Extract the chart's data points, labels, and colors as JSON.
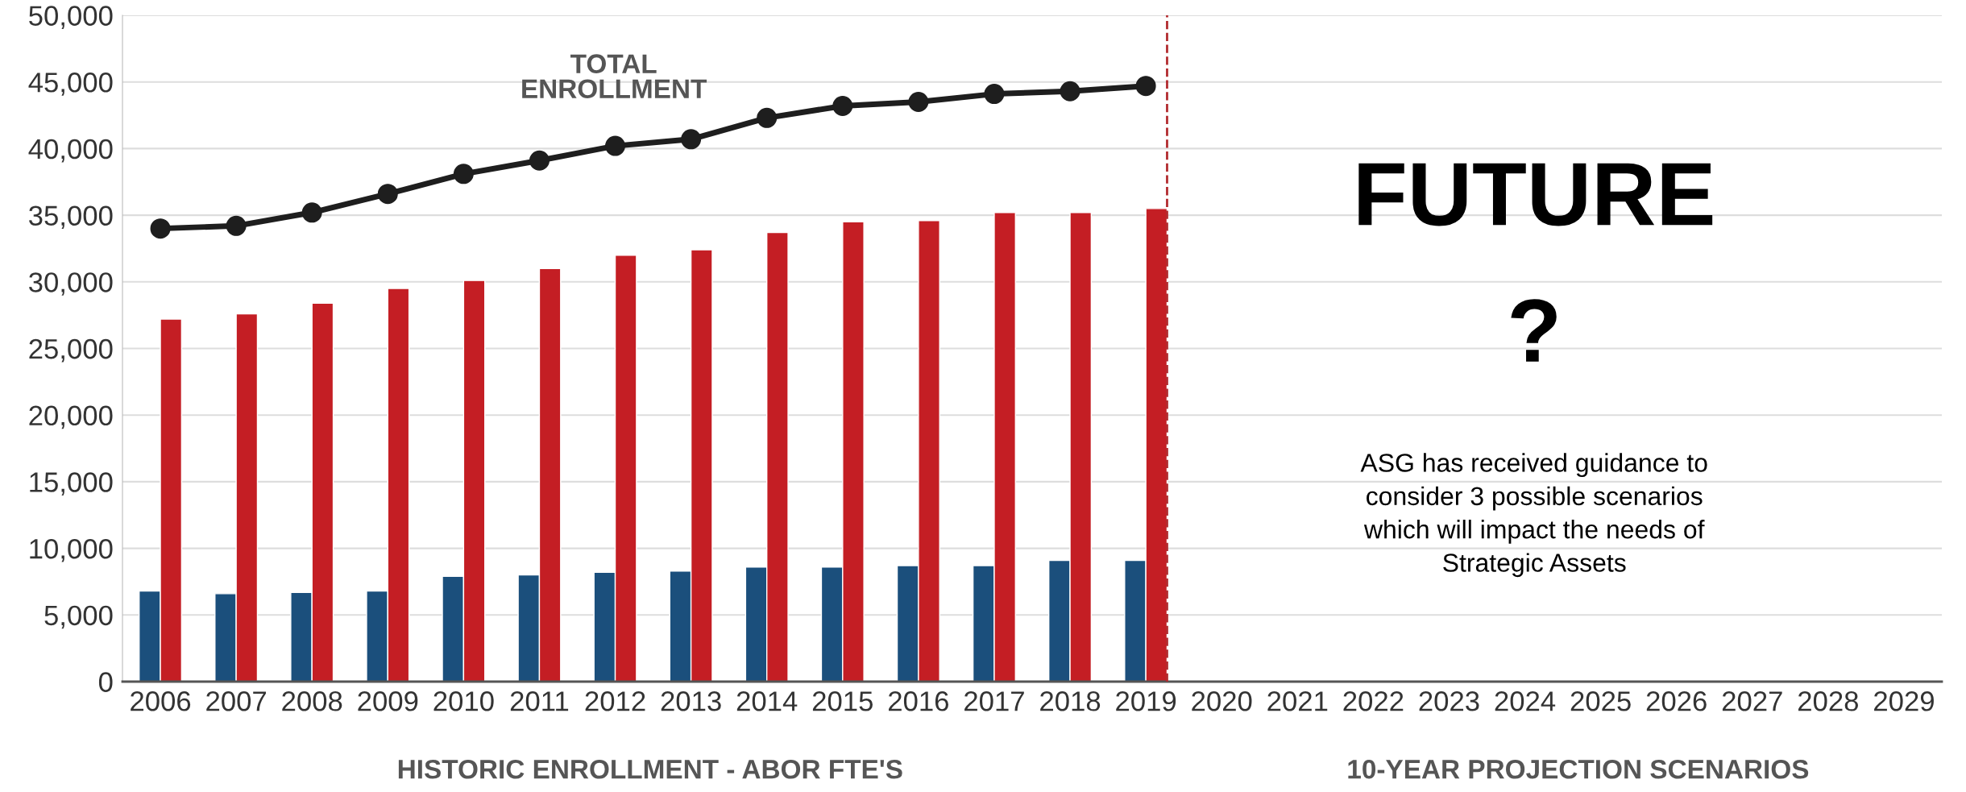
{
  "chart_data": {
    "type": "bar",
    "categories": [
      "2006",
      "2007",
      "2008",
      "2009",
      "2010",
      "2011",
      "2012",
      "2013",
      "2014",
      "2015",
      "2016",
      "2017",
      "2018",
      "2019",
      "2020",
      "2021",
      "2022",
      "2023",
      "2024",
      "2025",
      "2026",
      "2027",
      "2028",
      "2029"
    ],
    "series": [
      {
        "color": "#1b4f7c",
        "values": [
          6800,
          6600,
          6700,
          6800,
          7900,
          8000,
          8200,
          8300,
          8600,
          8600,
          8700,
          8700,
          9100,
          9100,
          null,
          null,
          null,
          null,
          null,
          null,
          null,
          null,
          null,
          null
        ]
      },
      {
        "color": "#c41e24",
        "values": [
          27200,
          27600,
          28400,
          29500,
          30100,
          31000,
          32000,
          32400,
          33700,
          34500,
          34600,
          35200,
          35200,
          35500,
          null,
          null,
          null,
          null,
          null,
          null,
          null,
          null,
          null,
          null
        ]
      },
      {
        "type": "line",
        "name": "TOTAL\nENROLLMENT",
        "color": "#1e1e1e",
        "marker": "circle",
        "values": [
          34000,
          34200,
          35200,
          36600,
          38100,
          39100,
          40200,
          40700,
          42300,
          43200,
          43500,
          44100,
          44300,
          44700,
          null,
          null,
          null,
          null,
          null,
          null,
          null,
          null,
          null,
          null
        ]
      }
    ],
    "ylim": [
      0,
      50000
    ],
    "yticks": [
      0,
      {
        "value": 5000,
        "label": "5,000"
      },
      {
        "value": 10000,
        "label": "10,000"
      },
      {
        "value": 15000,
        "label": "15,000"
      },
      {
        "value": 20000,
        "label": "20,000"
      },
      {
        "value": 25000,
        "label": "25,000"
      },
      {
        "value": 30000,
        "label": "30,000"
      },
      {
        "value": 35000,
        "label": "35,000"
      },
      {
        "value": 40000,
        "label": "40,000"
      },
      {
        "value": 45000,
        "label": "45,000"
      },
      {
        "value": 50000,
        "label": "50,000"
      }
    ],
    "grid": "y",
    "ref_lines": [
      {
        "axis": "x",
        "value": "2019",
        "color": "#b22a2e",
        "line_style": "dashed"
      }
    ],
    "annotations": [
      "HISTORIC ENROLLMENT - ABOR FTE'S",
      "10-YEAR PROJECTION SCENARIOS",
      "FUTURE",
      "?",
      "ASG has received guidance to\nconsider 3 possible scenarios\nwhich will impact the needs of\nStrategic Assets"
    ]
  }
}
